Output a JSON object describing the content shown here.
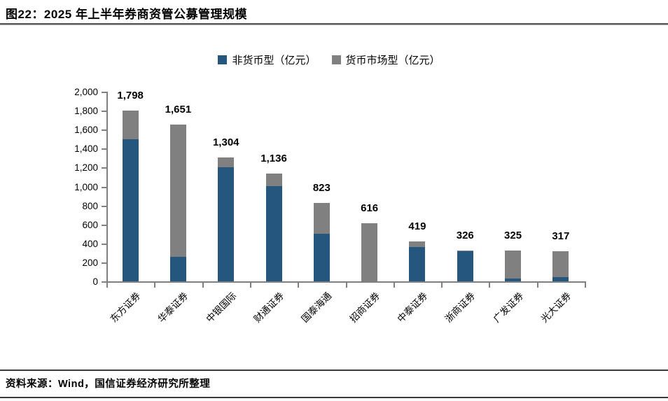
{
  "figure": {
    "title": "图22：2025 年上半年券商资管公募管理规模",
    "source": "资料来源：Wind，国信证券经济研究所整理"
  },
  "chart_data": {
    "type": "bar",
    "stacked": true,
    "title": "2025 年上半年券商资管公募管理规模",
    "categories": [
      "东方证券",
      "华泰证券",
      "中银国际",
      "财通证券",
      "国泰海通",
      "招商证券",
      "中泰证券",
      "浙商证券",
      "广发证券",
      "光大证券"
    ],
    "series": [
      {
        "name": "非货币型（亿元）",
        "color": "#25567e",
        "values": [
          1500,
          260,
          1200,
          1005,
          500,
          0,
          365,
          318,
          30,
          45
        ]
      },
      {
        "name": "货币市场型（亿元）",
        "color": "#808080",
        "values": [
          298,
          1391,
          104,
          131,
          323,
          616,
          54,
          8,
          295,
          272
        ]
      }
    ],
    "totals": [
      1798,
      1651,
      1304,
      1136,
      823,
      616,
      419,
      326,
      325,
      317
    ],
    "total_labels": [
      "1,798",
      "1,651",
      "1,304",
      "1,136",
      "823",
      "616",
      "419",
      "326",
      "325",
      "317"
    ],
    "ylim": [
      0,
      2000
    ],
    "ytick_step": 200,
    "ytick_labels": [
      "0",
      "200",
      "400",
      "600",
      "800",
      "1,000",
      "1,200",
      "1,400",
      "1,600",
      "1,800",
      "2,000"
    ],
    "legend_position": "top",
    "grid": false,
    "axis_color": "#808080"
  }
}
